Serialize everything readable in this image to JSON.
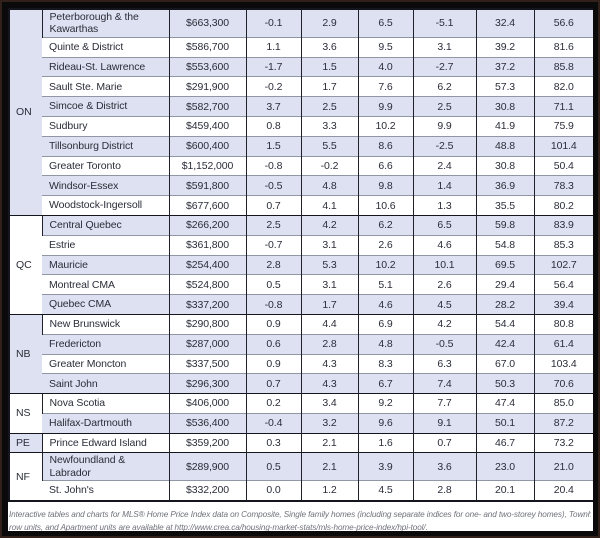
{
  "table": {
    "description": "MLS Home Price Index benchmark prices and percent changes by region",
    "groups": [
      {
        "label": "ON",
        "rows": [
          {
            "region": "Peterborough & the Kawarthas",
            "price": "$663,300",
            "values": [
              "-0.1",
              "2.9",
              "6.5",
              "-5.1",
              "32.4",
              "56.6"
            ]
          },
          {
            "region": "Quinte & District",
            "price": "$586,700",
            "values": [
              "1.1",
              "3.6",
              "9.5",
              "3.1",
              "39.2",
              "81.6"
            ]
          },
          {
            "region": "Rideau-St. Lawrence",
            "price": "$553,600",
            "values": [
              "-1.7",
              "1.5",
              "4.0",
              "-2.7",
              "37.2",
              "85.8"
            ]
          },
          {
            "region": "Sault Ste. Marie",
            "price": "$291,900",
            "values": [
              "-0.2",
              "1.7",
              "7.6",
              "6.2",
              "57.3",
              "82.0"
            ]
          },
          {
            "region": "Simcoe & District",
            "price": "$582,700",
            "values": [
              "3.7",
              "2.5",
              "9.9",
              "2.5",
              "30.8",
              "71.1"
            ]
          },
          {
            "region": "Sudbury",
            "price": "$459,400",
            "values": [
              "0.8",
              "3.3",
              "10.2",
              "9.9",
              "41.9",
              "75.9"
            ]
          },
          {
            "region": "Tillsonburg District",
            "price": "$600,400",
            "values": [
              "1.5",
              "5.5",
              "8.6",
              "-2.5",
              "48.8",
              "101.4"
            ]
          },
          {
            "region": "Greater Toronto",
            "price": "$1,152,000",
            "values": [
              "-0.8",
              "-0.2",
              "6.6",
              "2.4",
              "30.8",
              "50.4"
            ]
          },
          {
            "region": "Windsor-Essex",
            "price": "$591,800",
            "values": [
              "-0.5",
              "4.8",
              "9.8",
              "1.4",
              "36.9",
              "78.3"
            ]
          },
          {
            "region": "Woodstock-Ingersoll",
            "price": "$677,600",
            "values": [
              "0.7",
              "4.1",
              "10.6",
              "1.3",
              "35.5",
              "80.2"
            ]
          }
        ]
      },
      {
        "label": "QC",
        "rows": [
          {
            "region": "Central Quebec",
            "price": "$266,200",
            "values": [
              "2.5",
              "4.2",
              "6.2",
              "6.5",
              "59.8",
              "83.9"
            ]
          },
          {
            "region": "Estrie",
            "price": "$361,800",
            "values": [
              "-0.7",
              "3.1",
              "2.6",
              "4.6",
              "54.8",
              "85.3"
            ]
          },
          {
            "region": "Mauricie",
            "price": "$254,400",
            "values": [
              "2.8",
              "5.3",
              "10.2",
              "10.1",
              "69.5",
              "102.7"
            ]
          },
          {
            "region": "Montreal CMA",
            "price": "$524,800",
            "values": [
              "0.5",
              "3.1",
              "5.1",
              "2.6",
              "29.4",
              "56.4"
            ]
          },
          {
            "region": "Quebec CMA",
            "price": "$337,200",
            "values": [
              "-0.8",
              "1.7",
              "4.6",
              "4.5",
              "28.2",
              "39.4"
            ]
          }
        ]
      },
      {
        "label": "NB",
        "rows": [
          {
            "region": "New Brunswick",
            "price": "$290,800",
            "values": [
              "0.9",
              "4.4",
              "6.9",
              "4.2",
              "54.4",
              "80.8"
            ]
          },
          {
            "region": "Fredericton",
            "price": "$287,000",
            "values": [
              "0.6",
              "2.8",
              "4.8",
              "-0.5",
              "42.4",
              "61.4"
            ]
          },
          {
            "region": "Greater Moncton",
            "price": "$337,500",
            "values": [
              "0.9",
              "4.3",
              "8.3",
              "6.3",
              "67.0",
              "103.4"
            ]
          },
          {
            "region": "Saint John",
            "price": "$296,300",
            "values": [
              "0.7",
              "4.3",
              "6.7",
              "7.4",
              "50.3",
              "70.6"
            ]
          }
        ]
      },
      {
        "label": "NS",
        "rows": [
          {
            "region": "Nova Scotia",
            "price": "$406,000",
            "values": [
              "0.2",
              "3.4",
              "9.2",
              "7.7",
              "47.4",
              "85.0"
            ]
          },
          {
            "region": "Halifax-Dartmouth",
            "price": "$536,400",
            "values": [
              "-0.4",
              "3.2",
              "9.6",
              "9.1",
              "50.1",
              "87.2"
            ]
          }
        ]
      },
      {
        "label": "PE",
        "rows": [
          {
            "region": "Prince Edward Island",
            "price": "$359,200",
            "values": [
              "0.3",
              "2.1",
              "1.6",
              "0.7",
              "46.7",
              "73.2"
            ]
          }
        ]
      },
      {
        "label": "NF",
        "rows": [
          {
            "region": "Newfoundland & Labrador",
            "price": "$289,900",
            "values": [
              "0.5",
              "2.1",
              "3.9",
              "3.6",
              "23.0",
              "21.0"
            ]
          },
          {
            "region": "St. John's",
            "price": "$332,200",
            "values": [
              "0.0",
              "1.2",
              "4.5",
              "2.8",
              "20.1",
              "20.4"
            ]
          }
        ]
      }
    ]
  },
  "footer": {
    "lines": [
      "Interactive tables and charts for MLS® Home Price Index data on Composite, Single family homes (including separate indices for one- and two-storey homes), Townhouse/",
      "row units, and Apartment units are available at http://www.crea.ca/housing-market-stats/mls-home-price-index/hpi-tool/."
    ]
  },
  "colors": {
    "row_shade": "#dde1f1",
    "row_plain": "#ffffff",
    "text": "#2b2d39",
    "border_dark": "#15161d",
    "border_light": "#9096a3",
    "frame": "#0b0a0a",
    "frame_edge": "#32211a",
    "footer_text": "#6f727a"
  }
}
